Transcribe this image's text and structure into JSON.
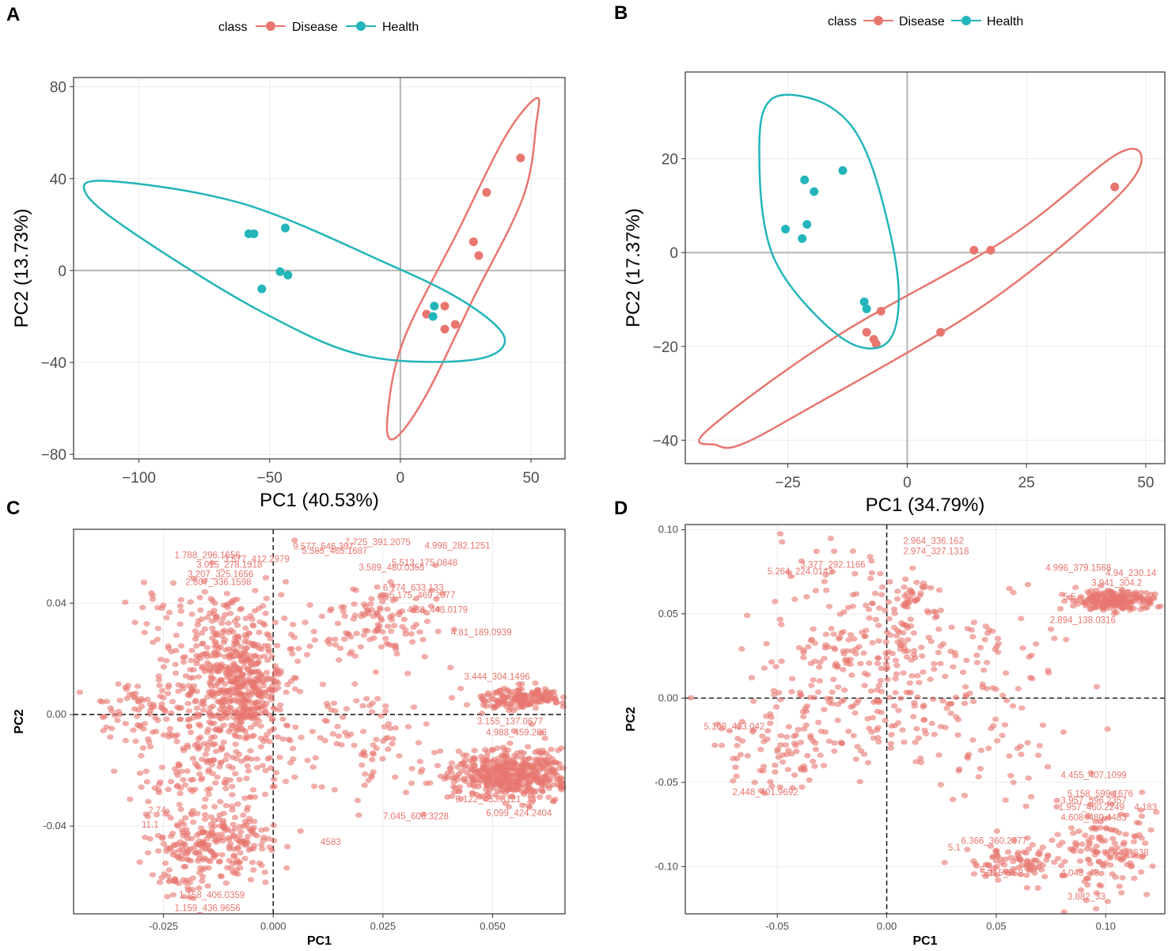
{
  "colors": {
    "disease": "#E8766F",
    "health": "#23B5BA",
    "axis": "#333333",
    "gridline": "#B5B5B5",
    "panel_border": "#333333",
    "label_text": "#E8766F"
  },
  "legend": {
    "title": "class",
    "entries": [
      "Disease",
      "Health"
    ]
  },
  "chart_data": [
    {
      "panel": "A",
      "type": "scatter",
      "xlabel": "PC1 (40.53%)",
      "ylabel": "PC2 (13.73%)",
      "xlim": [
        -125,
        63
      ],
      "ylim": [
        -82,
        84
      ],
      "xticks": [
        -100,
        -50,
        0,
        50
      ],
      "yticks": [
        -80,
        -40,
        0,
        40,
        80
      ],
      "series": [
        {
          "name": "Disease",
          "points": [
            [
              46,
              49
            ],
            [
              33,
              34
            ],
            [
              28,
              12.5
            ],
            [
              30,
              6.5
            ],
            [
              17,
              -15.5
            ],
            [
              21,
              -23.5
            ],
            [
              17,
              -25.5
            ],
            [
              10,
              -19
            ]
          ],
          "ellipse": [
            [
              -2,
              -73
            ],
            [
              -5,
              -65
            ],
            [
              1,
              -31
            ],
            [
              22,
              17
            ],
            [
              40,
              58
            ],
            [
              52,
              75
            ],
            [
              52,
              64
            ],
            [
              47,
              32
            ],
            [
              28,
              -12
            ],
            [
              10,
              -54
            ]
          ]
        },
        {
          "name": "Health",
          "points": [
            [
              -58,
              16
            ],
            [
              -56,
              16
            ],
            [
              -44,
              18.5
            ],
            [
              -46,
              -0.5
            ],
            [
              -43,
              -2
            ],
            [
              -53,
              -8
            ],
            [
              13,
              -15.5
            ],
            [
              12.5,
              -20
            ]
          ],
          "ellipse": [
            [
              -112,
              39
            ],
            [
              -120,
              33
            ],
            [
              -99,
              14
            ],
            [
              -53,
              -18
            ],
            [
              -14,
              -37
            ],
            [
              27,
              -39
            ],
            [
              40,
              -30
            ],
            [
              25,
              -14
            ],
            [
              -5,
              3
            ],
            [
              -60,
              29
            ]
          ]
        }
      ]
    },
    {
      "panel": "B",
      "type": "scatter",
      "xlabel": "PC1 (34.79%)",
      "ylabel": "PC2 (17.37%)",
      "xlim": [
        -46.5,
        54
      ],
      "ylim": [
        -45,
        38.5
      ],
      "xticks": [
        -25,
        0,
        25,
        50
      ],
      "yticks": [
        -40,
        -20,
        0,
        20
      ],
      "series": [
        {
          "name": "Disease",
          "points": [
            [
              43.5,
              14
            ],
            [
              14,
              0.5
            ],
            [
              17.5,
              0.5
            ],
            [
              -5.5,
              -12.5
            ],
            [
              -8.5,
              -17
            ],
            [
              -7,
              -18.5
            ],
            [
              -6.5,
              -19.5
            ],
            [
              7,
              -17
            ]
          ],
          "ellipse": [
            [
              -40,
              -41
            ],
            [
              -42,
              -38
            ],
            [
              -15,
              -18
            ],
            [
              21,
              3
            ],
            [
              44,
              21
            ],
            [
              49,
              19
            ],
            [
              41,
              9
            ],
            [
              15,
              -12
            ],
            [
              -22,
              -34
            ],
            [
              -35,
              -41
            ]
          ]
        },
        {
          "name": "Health",
          "points": [
            [
              -13.5,
              17.5
            ],
            [
              -21.5,
              15.5
            ],
            [
              -19.5,
              13
            ],
            [
              -21,
              6
            ],
            [
              -25.5,
              5
            ],
            [
              -22,
              3
            ],
            [
              -9,
              -10.5
            ],
            [
              -8.5,
              -12
            ]
          ],
          "ellipse": [
            [
              -28,
              33
            ],
            [
              -31,
              22
            ],
            [
              -28,
              -1
            ],
            [
              -14,
              -18
            ],
            [
              -4,
              -19
            ],
            [
              -2,
              -5
            ],
            [
              -8,
              20
            ],
            [
              -16,
              31
            ]
          ]
        }
      ]
    },
    {
      "panel": "C",
      "type": "scatter",
      "xlabel": "PC1",
      "ylabel": "PC2",
      "xlim": [
        -0.0455,
        0.0665
      ],
      "ylim": [
        -0.0715,
        0.0665
      ],
      "xticks": [
        -0.025,
        0.0,
        0.025,
        0.05
      ],
      "xtick_labels": [
        "-0.025",
        "0.000",
        "0.025",
        "0.050"
      ],
      "yticks": [
        -0.04,
        0.0,
        0.04
      ],
      "ytick_labels": [
        "-0.04",
        "0.00",
        "0.04"
      ],
      "clusters": [
        {
          "cx": -0.007,
          "cy": 0.008,
          "sx": 0.0045,
          "sy": 0.009,
          "n": 280
        },
        {
          "cx": -0.014,
          "cy": -0.006,
          "sx": 0.009,
          "sy": 0.02,
          "n": 380
        },
        {
          "cx": -0.011,
          "cy": 0.028,
          "sx": 0.0085,
          "sy": 0.011,
          "n": 180
        },
        {
          "cx": -0.013,
          "cy": -0.046,
          "sx": 0.007,
          "sy": 0.007,
          "n": 230
        },
        {
          "cx": 0.055,
          "cy": -0.021,
          "sx": 0.008,
          "sy": 0.0045,
          "n": 520
        },
        {
          "cx": 0.057,
          "cy": 0.006,
          "sx": 0.006,
          "sy": 0.002,
          "n": 170
        },
        {
          "cx": 0.024,
          "cy": 0.032,
          "sx": 0.007,
          "sy": 0.008,
          "n": 120
        },
        {
          "cx": -0.032,
          "cy": 0.002,
          "sx": 0.005,
          "sy": 0.005,
          "n": 50
        },
        {
          "cx": 0.02,
          "cy": -0.012,
          "sx": 0.008,
          "sy": 0.011,
          "n": 90
        },
        {
          "cx": -0.021,
          "cy": -0.062,
          "sx": 0.0025,
          "sy": 0.003,
          "n": 22
        }
      ],
      "labels": [
        {
          "text": "7.725_391.2075",
          "x": 0.0163,
          "y": 0.0608
        },
        {
          "text": "4.998_282.1251",
          "x": 0.0345,
          "y": 0.0595
        },
        {
          "text": "9.577_546.397",
          "x": 0.0045,
          "y": 0.0592
        },
        {
          "text": "1.788_296.1656",
          "x": -0.0225,
          "y": 0.0562
        },
        {
          "text": "3.577_412.2979",
          "x": -0.0113,
          "y": 0.0547
        },
        {
          "text": "5.585_465.1687",
          "x": 0.0065,
          "y": 0.0577
        },
        {
          "text": "5.513_175.0848",
          "x": 0.027,
          "y": 0.0535
        },
        {
          "text": "3.015_278.1318",
          "x": -0.0175,
          "y": 0.0527
        },
        {
          "text": "3.207_325.1656",
          "x": -0.0195,
          "y": 0.0493
        },
        {
          "text": "2.807_336.1598",
          "x": -0.02,
          "y": 0.0465
        },
        {
          "text": "3.589_480.0355",
          "x": 0.0195,
          "y": 0.0517
        },
        {
          "text": "6.174_633.133",
          "x": 0.025,
          "y": 0.0445
        },
        {
          "text": "5.175_469.2077",
          "x": 0.0265,
          "y": 0.0418
        },
        {
          "text": "4.38_443.0179",
          "x": 0.0305,
          "y": 0.0365
        },
        {
          "text": "4.81_189.0939",
          "x": 0.0405,
          "y": 0.0285
        },
        {
          "text": "3.444_304.1496",
          "x": 0.0435,
          "y": 0.0125
        },
        {
          "text": "3.155_137.0677",
          "x": 0.0465,
          "y": -0.0035
        },
        {
          "text": "4.988_459.206",
          "x": 0.0485,
          "y": -0.0075
        },
        {
          "text": "6.122_453.3121_13",
          "x": 0.0415,
          "y": -0.0315
        },
        {
          "text": "7.045_606.3228",
          "x": 0.025,
          "y": -0.0375
        },
        {
          "text": "6.099_424.2404",
          "x": 0.0485,
          "y": -0.0365
        },
        {
          "text": "2.74_",
          "x": -0.0285,
          "y": -0.0355
        },
        {
          "text": "11.1",
          "x": -0.03,
          "y": -0.0405
        },
        {
          "text": "4583",
          "x": 0.0108,
          "y": -0.0468
        },
        {
          "text": "1.158_406.0359",
          "x": -0.0215,
          "y": -0.0658
        },
        {
          "text": "1.159_436.9656",
          "x": -0.0225,
          "y": -0.0705
        }
      ]
    },
    {
      "panel": "D",
      "type": "scatter",
      "xlabel": "PC1",
      "ylabel": "PC2",
      "xlim": [
        -0.092,
        0.127
      ],
      "ylim": [
        -0.128,
        0.103
      ],
      "xticks": [
        -0.05,
        0.0,
        0.05,
        0.1
      ],
      "xtick_labels": [
        "-0.05",
        "0.00",
        "0.05",
        "0.10"
      ],
      "yticks": [
        -0.1,
        -0.05,
        0.0,
        0.05,
        0.1
      ],
      "ytick_labels": [
        "-0.10",
        "-0.05",
        "0.00",
        "0.05",
        "0.10"
      ],
      "clusters": [
        {
          "cx": -0.005,
          "cy": 0.02,
          "sx": 0.027,
          "sy": 0.03,
          "n": 330
        },
        {
          "cx": -0.045,
          "cy": -0.03,
          "sx": 0.017,
          "sy": 0.015,
          "n": 90
        },
        {
          "cx": 0.01,
          "cy": 0.06,
          "sx": 0.005,
          "sy": 0.007,
          "n": 30
        },
        {
          "cx": 0.105,
          "cy": 0.058,
          "sx": 0.01,
          "sy": 0.003,
          "n": 220
        },
        {
          "cx": 0.1,
          "cy": -0.09,
          "sx": 0.014,
          "sy": 0.015,
          "n": 140
        },
        {
          "cx": 0.06,
          "cy": -0.097,
          "sx": 0.012,
          "sy": 0.006,
          "n": 90
        },
        {
          "cx": 0.05,
          "cy": -0.01,
          "sx": 0.022,
          "sy": 0.03,
          "n": 80
        }
      ],
      "labels": [
        {
          "text": "2.964_336.162",
          "x": 0.0075,
          "y": 0.0915
        },
        {
          "text": "2.974_327.1318",
          "x": 0.0075,
          "y": 0.0855
        },
        {
          "text": "3.377_292.1166",
          "x": -0.0395,
          "y": 0.0775
        },
        {
          "text": "5.264_224.0143",
          "x": -0.0545,
          "y": 0.0735
        },
        {
          "text": "4.996_379.1568",
          "x": 0.0725,
          "y": 0.0755
        },
        {
          "text": "4.94_230.14",
          "x": 0.1,
          "y": 0.0725
        },
        {
          "text": "3.941_304.2",
          "x": 0.0935,
          "y": 0.0665
        },
        {
          "text": "5.5",
          "x": 0.0805,
          "y": 0.0585
        },
        {
          "text": "2.894_138.0316",
          "x": 0.0745,
          "y": 0.0445
        },
        {
          "text": "5.108_423.042",
          "x": -0.0835,
          "y": -0.0185
        },
        {
          "text": "2.448_401.9692",
          "x": -0.0705,
          "y": -0.0575
        },
        {
          "text": "4.455_407.1099",
          "x": 0.0795,
          "y": -0.0475
        },
        {
          "text": "5.158_599.1676",
          "x": 0.0825,
          "y": -0.0585
        },
        {
          "text": "3.957_596.2357",
          "x": 0.0795,
          "y": -0.0625
        },
        {
          "text": "1.957_460.2249",
          "x": 0.0785,
          "y": -0.0665
        },
        {
          "text": "4.183",
          "x": 0.113,
          "y": -0.0665
        },
        {
          "text": "4.608_480.4483",
          "x": 0.0795,
          "y": -0.0725
        },
        {
          "text": "6.366_360.2877",
          "x": 0.034,
          "y": -0.0865
        },
        {
          "text": "5.1",
          "x": 0.028,
          "y": -0.0905
        },
        {
          "text": "4.441_538",
          "x": 0.1,
          "y": -0.0935
        },
        {
          "text": "6.4",
          "x": 0.0425,
          "y": -0.1035
        },
        {
          "text": "5.115_758",
          "x": 0.043,
          "y": -0.1055
        },
        {
          "text": "4.043_48",
          "x": 0.0795,
          "y": -0.1055
        },
        {
          "text": "3.882_33",
          "x": 0.0825,
          "y": -0.1195
        }
      ]
    }
  ]
}
